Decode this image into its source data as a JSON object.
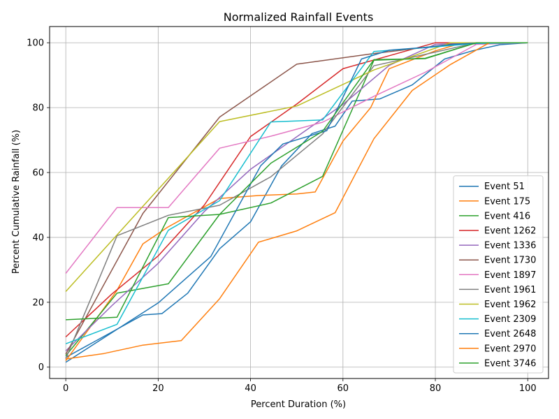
{
  "chart_data": {
    "type": "line",
    "title": "Normalized Rainfall Events",
    "xlabel": "Percent Duration (%)",
    "ylabel": "Percent Cumulative Rainfall (%)",
    "xlim": [
      -3.5,
      104.5
    ],
    "ylim": [
      -3.5,
      105
    ],
    "xticks": [
      0,
      20,
      40,
      60,
      80,
      100
    ],
    "yticks": [
      0,
      20,
      40,
      60,
      80,
      100
    ],
    "grid": true,
    "legend_position": "lower-right",
    "series": [
      {
        "name": "Event 51",
        "color": "#1f77b4",
        "x": [
          0,
          16.7,
          20.8,
          26.4,
          33.3,
          40,
          46.7,
          53.3,
          58.3,
          62,
          68,
          75,
          82,
          88,
          94,
          100
        ],
        "y": [
          3,
          16.1,
          16.5,
          22.8,
          36.5,
          44.8,
          62,
          72,
          74.3,
          82,
          82.7,
          87,
          95,
          97.5,
          99.4,
          100
        ]
      },
      {
        "name": "Event 175",
        "color": "#ff7f0e",
        "x": [
          0,
          11,
          16.7,
          22,
          33.3,
          41.7,
          50,
          54,
          60,
          66,
          70,
          80,
          86,
          100
        ],
        "y": [
          2,
          23.5,
          38,
          43.1,
          52,
          52.9,
          53.4,
          54,
          69.7,
          80,
          92,
          97.5,
          100,
          100
        ]
      },
      {
        "name": "Event 416",
        "color": "#2ca02c",
        "x": [
          0,
          11.1,
          22.2,
          33.3,
          44.4,
          55.6,
          66.7,
          77.8,
          88.9,
          100
        ],
        "y": [
          3.5,
          22.8,
          25.7,
          47.1,
          50.6,
          58.8,
          94.6,
          95.2,
          100,
          100
        ]
      },
      {
        "name": "Event 1262",
        "color": "#d62728",
        "x": [
          0,
          10,
          20,
          30,
          40,
          50,
          60,
          70,
          80,
          90,
          100
        ],
        "y": [
          9.3,
          22.6,
          34.3,
          50,
          71.1,
          81.1,
          92,
          96,
          100,
          100,
          100
        ]
      },
      {
        "name": "Event 1336",
        "color": "#9467bd",
        "x": [
          0,
          10,
          20,
          30,
          40,
          50,
          60,
          70,
          80,
          90,
          100
        ],
        "y": [
          5,
          19,
          32,
          48,
          61,
          71,
          81,
          93,
          99.5,
          100,
          100
        ]
      },
      {
        "name": "Event 1730",
        "color": "#8c564b",
        "x": [
          0,
          16.7,
          33.3,
          50,
          66.7,
          83.3,
          100
        ],
        "y": [
          4,
          47.4,
          77.1,
          93.4,
          96.7,
          99.5,
          100
        ]
      },
      {
        "name": "Event 1897",
        "color": "#e377c2",
        "x": [
          0,
          11.1,
          22.2,
          33.3,
          44.4,
          55.6,
          66.7,
          77.8,
          88.9,
          100
        ],
        "y": [
          28.9,
          49.2,
          49.2,
          67.5,
          71.2,
          75.5,
          83.5,
          90.9,
          99.5,
          100
        ]
      },
      {
        "name": "Event 1961",
        "color": "#7f7f7f",
        "x": [
          0,
          11.1,
          22.2,
          33.3,
          44.4,
          55.6,
          66.7,
          77.8,
          88.9,
          100
        ],
        "y": [
          2.6,
          40.5,
          46.8,
          49.9,
          58.7,
          71.9,
          92.9,
          96.4,
          100,
          100
        ]
      },
      {
        "name": "Event 1962",
        "color": "#bcbd22",
        "x": [
          0,
          33.3,
          50,
          66.7,
          83.3,
          100
        ],
        "y": [
          23.3,
          75.7,
          80.5,
          91.6,
          100,
          100
        ]
      },
      {
        "name": "Event 2309",
        "color": "#17becf",
        "x": [
          0,
          11.1,
          22.2,
          33.3,
          44.4,
          55.6,
          66.7,
          77.8,
          88.9,
          100
        ],
        "y": [
          7.2,
          13.2,
          42.2,
          51.3,
          75.6,
          76.2,
          97.3,
          98.5,
          99.8,
          100
        ]
      },
      {
        "name": "Event 2648",
        "color": "#1f77b4",
        "x": [
          0,
          20,
          31.4,
          42.2,
          47,
          56.5,
          64,
          70,
          78,
          84,
          90,
          100
        ],
        "y": [
          1.5,
          19.8,
          34.1,
          62.1,
          68.8,
          72.9,
          95,
          97.7,
          98.6,
          99.5,
          100,
          100
        ]
      },
      {
        "name": "Event 2970",
        "color": "#ff7f0e",
        "x": [
          0,
          8.3,
          16.7,
          25,
          33.3,
          41.7,
          50,
          58.3,
          66.7,
          75,
          83.3,
          91.7,
          100
        ],
        "y": [
          2.5,
          4.2,
          6.8,
          8.2,
          21.1,
          38.5,
          42,
          47.6,
          70.4,
          85.3,
          93.3,
          100,
          100
        ]
      },
      {
        "name": "Event 3746",
        "color": "#2ca02c",
        "x": [
          0,
          11.1,
          22.2,
          33.3,
          44.4,
          55.6,
          66.7,
          77.8,
          88.9,
          100
        ],
        "y": [
          14.6,
          15.4,
          46.1,
          47.1,
          62.9,
          72.7,
          94.8,
          95.1,
          100,
          100
        ]
      }
    ]
  }
}
